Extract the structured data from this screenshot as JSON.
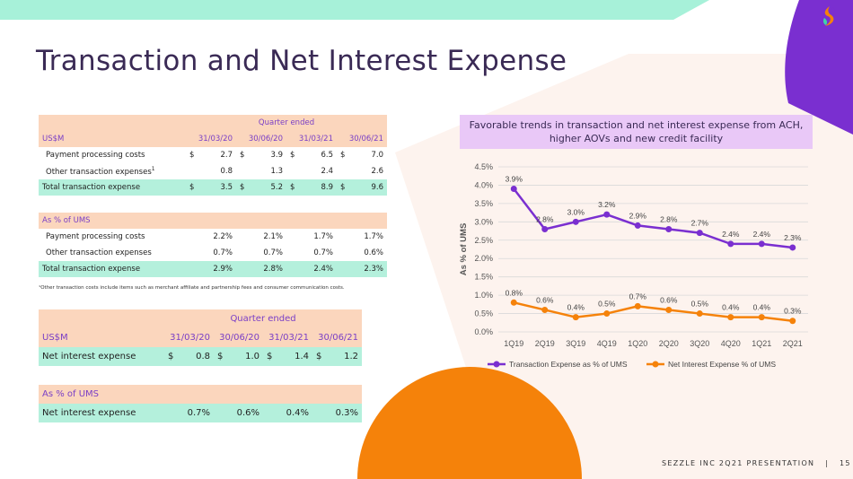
{
  "title": "Transaction and Net Interest Expense",
  "footer": {
    "text": "SEZZLE INC 2Q21 PRESENTATION",
    "sep": "|",
    "page": "15"
  },
  "colors": {
    "purple": "#7a2fd0",
    "orange": "#f5820a",
    "mint": "#a7f1d9",
    "peach": "#fbd6bd",
    "lavender": "#e9c8f7"
  },
  "table1": {
    "group_header": "Quarter ended",
    "currency": "US$M",
    "periods": [
      "31/03/20",
      "30/06/20",
      "31/03/21",
      "30/06/21"
    ],
    "rows": [
      {
        "label": "Payment processing costs",
        "cells": [
          {
            "cur": "$",
            "val": "2.7"
          },
          {
            "cur": "$",
            "val": "3.9"
          },
          {
            "cur": "$",
            "val": "6.5"
          },
          {
            "cur": "$",
            "val": "7.0"
          }
        ]
      },
      {
        "label": "Other transaction expenses",
        "sup": "1",
        "cells": [
          {
            "cur": "",
            "val": "0.8"
          },
          {
            "cur": "",
            "val": "1.3"
          },
          {
            "cur": "",
            "val": "2.4"
          },
          {
            "cur": "",
            "val": "2.6"
          }
        ]
      },
      {
        "label": "Total transaction expense",
        "cells": [
          {
            "cur": "$",
            "val": "3.5"
          },
          {
            "cur": "$",
            "val": "5.2"
          },
          {
            "cur": "$",
            "val": "8.9"
          },
          {
            "cur": "$",
            "val": "9.6"
          }
        ]
      }
    ],
    "pct_header": "As % of UMS",
    "pct_rows": [
      {
        "label": "Payment processing costs",
        "values": [
          "2.2%",
          "2.1%",
          "1.7%",
          "1.7%"
        ]
      },
      {
        "label": "Other transaction expenses",
        "values": [
          "0.7%",
          "0.7%",
          "0.7%",
          "0.6%"
        ]
      },
      {
        "label": "Total transaction expense",
        "values": [
          "2.9%",
          "2.8%",
          "2.4%",
          "2.3%"
        ]
      }
    ],
    "footnote": "¹Other transaction costs include items such as merchant affiliate and partnership fees and consumer communication costs."
  },
  "table2": {
    "group_header": "Quarter ended",
    "currency": "US$M",
    "periods": [
      "31/03/20",
      "30/06/20",
      "31/03/21",
      "30/06/21"
    ],
    "row": {
      "label": "Net interest expense",
      "cells": [
        {
          "cur": "$",
          "val": "0.8"
        },
        {
          "cur": "$",
          "val": "1.0"
        },
        {
          "cur": "$",
          "val": "1.4"
        },
        {
          "cur": "$",
          "val": "1.2"
        }
      ]
    },
    "pct_header": "As % of UMS",
    "pct_row": {
      "label": "Net interest expense",
      "values": [
        "0.7%",
        "0.6%",
        "0.4%",
        "0.3%"
      ]
    }
  },
  "chart_title": "Favorable trends in transaction and net interest expense from ACH, higher AOVs and new credit facility",
  "chart_data": {
    "type": "line",
    "categories": [
      "1Q19",
      "2Q19",
      "3Q19",
      "4Q19",
      "1Q20",
      "2Q20",
      "3Q20",
      "4Q20",
      "1Q21",
      "2Q21"
    ],
    "series": [
      {
        "name": "Transaction Expense as % of UMS",
        "values": [
          3.9,
          2.8,
          3.0,
          3.2,
          2.9,
          2.8,
          2.7,
          2.4,
          2.4,
          2.3
        ],
        "labels": [
          "3.9%",
          "2.8%",
          "3.0%",
          "3.2%",
          "2.9%",
          "2.8%",
          "2.7%",
          "2.4%",
          "2.4%",
          "2.3%"
        ],
        "color": "#7a2fd0"
      },
      {
        "name": "Net Interest Expense % of UMS",
        "values": [
          0.8,
          0.6,
          0.4,
          0.5,
          0.7,
          0.6,
          0.5,
          0.4,
          0.4,
          0.3
        ],
        "labels": [
          "0.8%",
          "0.6%",
          "0.4%",
          "0.5%",
          "0.7%",
          "0.6%",
          "0.5%",
          "0.4%",
          "0.4%",
          "0.3%"
        ],
        "color": "#f5820a"
      }
    ],
    "ylabel": "As % of UMS",
    "ylim": [
      0,
      4.5
    ],
    "yticks": [
      "0.0%",
      "0.5%",
      "1.0%",
      "1.5%",
      "2.0%",
      "2.5%",
      "3.0%",
      "3.5%",
      "4.0%",
      "4.5%"
    ],
    "grid": true,
    "legend": "bottom"
  }
}
